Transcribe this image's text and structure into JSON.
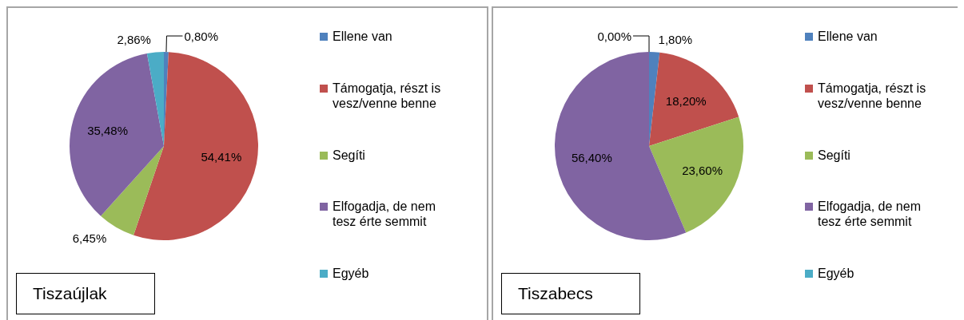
{
  "chart_data": [
    {
      "type": "pie",
      "title": "Tiszaújlak",
      "categories": [
        "Ellene van",
        "Támogatja, részt is vesz/venne benne",
        "Segíti",
        "Elfogadja, de nem tesz érte semmit",
        "Egyéb"
      ],
      "values": [
        0.8,
        54.41,
        6.45,
        35.48,
        2.86
      ],
      "colors": [
        "#4f81bd",
        "#c0504d",
        "#9bbb59",
        "#8064a2",
        "#4bacc6"
      ],
      "value_labels": [
        "0,80%",
        "54,41%",
        "6,45%",
        "35,48%",
        "2,86%"
      ],
      "legend": "right"
    },
    {
      "type": "pie",
      "title": "Tiszabecs",
      "categories": [
        "Ellene van",
        "Támogatja, részt is vesz/venne benne",
        "Segíti",
        "Elfogadja, de nem tesz érte semmit",
        "Egyéb"
      ],
      "values": [
        1.8,
        18.2,
        23.6,
        56.4,
        0
      ],
      "colors": [
        "#4f81bd",
        "#c0504d",
        "#9bbb59",
        "#8064a2",
        "#4bacc6"
      ],
      "value_labels": [
        "1,80%",
        "18,20%",
        "23,60%",
        "56,40%",
        "0,00%"
      ],
      "legend": "right"
    }
  ]
}
